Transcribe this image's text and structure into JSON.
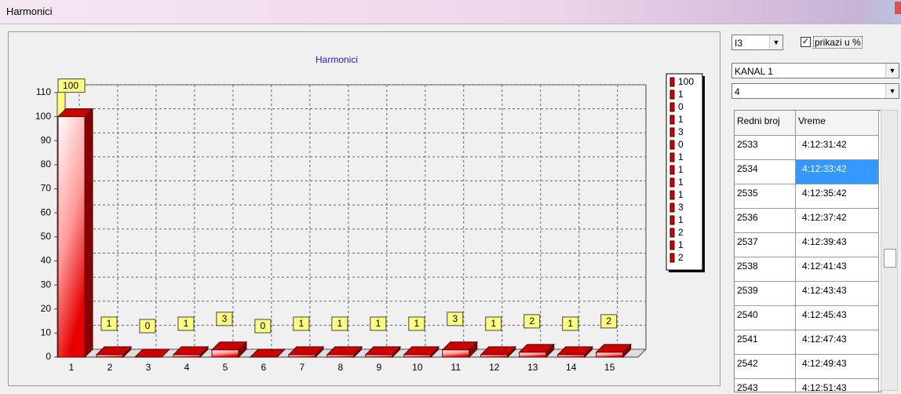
{
  "window": {
    "title": "Harmonici"
  },
  "chart_data": {
    "type": "bar",
    "title": "Harmonici",
    "categories": [
      "1",
      "2",
      "3",
      "4",
      "5",
      "6",
      "7",
      "8",
      "9",
      "10",
      "11",
      "12",
      "13",
      "14",
      "15"
    ],
    "values": [
      100,
      1,
      0,
      1,
      3,
      0,
      1,
      1,
      1,
      1,
      3,
      1,
      2,
      1,
      2
    ],
    "color": "#cc0000",
    "ylim": [
      0,
      110
    ],
    "yticks": [
      0,
      10,
      20,
      30,
      40,
      50,
      60,
      70,
      80,
      90,
      100,
      110
    ],
    "grid": true
  },
  "controls": {
    "signal": "I3",
    "percent_checkbox": "prikazi u %",
    "channel": "KANAL 1",
    "number": "4"
  },
  "table": {
    "headers": [
      "Redni broj",
      "Vreme"
    ],
    "rows": [
      [
        "2533",
        "4:12:31:42"
      ],
      [
        "2534",
        "4:12:33:42"
      ],
      [
        "2535",
        "4:12:35:42"
      ],
      [
        "2536",
        "4:12:37:42"
      ],
      [
        "2537",
        "4:12:39:43"
      ],
      [
        "2538",
        "4:12:41:43"
      ],
      [
        "2539",
        "4:12:43:43"
      ],
      [
        "2540",
        "4:12:45:43"
      ],
      [
        "2541",
        "4:12:47:43"
      ],
      [
        "2542",
        "4:12:49:43"
      ],
      [
        "2543",
        "4:12:51:43"
      ]
    ]
  }
}
